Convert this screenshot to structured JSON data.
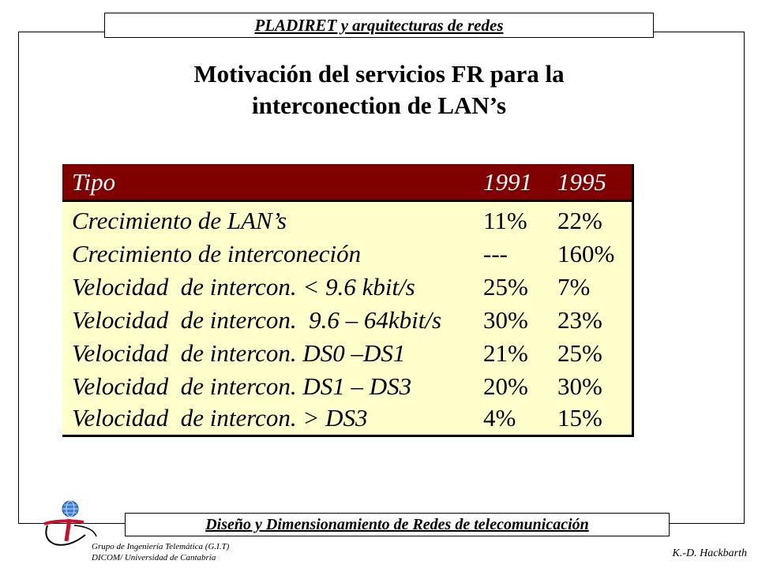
{
  "header": {
    "title": "PLADIRET y arquitecturas de redes"
  },
  "slide": {
    "title": "Motivación del servicios FR para la\ninterconection   de LAN’s"
  },
  "table": {
    "columns": [
      "Tipo",
      "1991",
      "1995"
    ],
    "rows": [
      [
        "Crecimiento de LAN’s",
        "11%",
        "22%"
      ],
      [
        "Crecimiento de interconeción",
        "---",
        "160%"
      ],
      [
        "Velocidad  de intercon. < 9.6 kbit/s",
        "25%",
        "7%"
      ],
      [
        "Velocidad  de intercon.  9.6 – 64kbit/s",
        "30%",
        "23%"
      ],
      [
        "Velocidad  de intercon. DS0 –DS1",
        "21%",
        "25%"
      ],
      [
        "Velocidad  de intercon. DS1 – DS3",
        "20%",
        "30%"
      ],
      [
        "Velocidad  de intercon. > DS3",
        "4%",
        "15%"
      ]
    ]
  },
  "footer": {
    "banner": "Diseño y Dimensionamiento de Redes de telecomunicación",
    "group_line1": "Grupo de Ingeniería Telemática (G.I.T)",
    "group_line2": "DICOM/ Universidad de Cantabria",
    "author": "K.-D. Hackbarth"
  },
  "colors": {
    "table_header_bg": "#800000",
    "table_body_bg": "#ffffcc",
    "logo_red": "#c8102e",
    "logo_globe": "#3a7fd5"
  },
  "icons": {
    "logo": "git-logo-icon"
  }
}
